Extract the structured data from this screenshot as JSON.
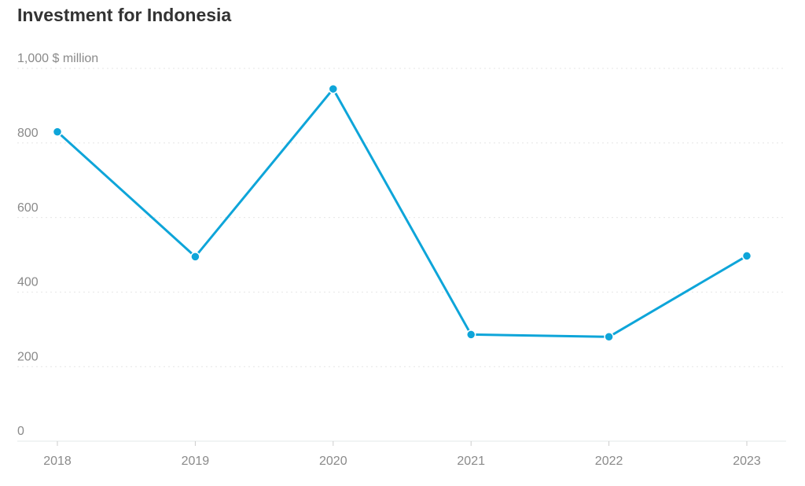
{
  "chart_data": {
    "type": "line",
    "title": "Investment for Indonesia",
    "categories": [
      "2018",
      "2019",
      "2020",
      "2021",
      "2022",
      "2023"
    ],
    "series": [
      {
        "name": "Investment",
        "color": "#0ea5d9",
        "values": [
          830,
          495,
          945,
          286,
          280,
          497
        ]
      }
    ],
    "ylim": [
      0,
      1000
    ],
    "yticks": [
      0,
      200,
      400,
      600,
      800,
      {
        "value": 1000,
        "label": "1,000 $ million"
      }
    ],
    "grid": true
  }
}
